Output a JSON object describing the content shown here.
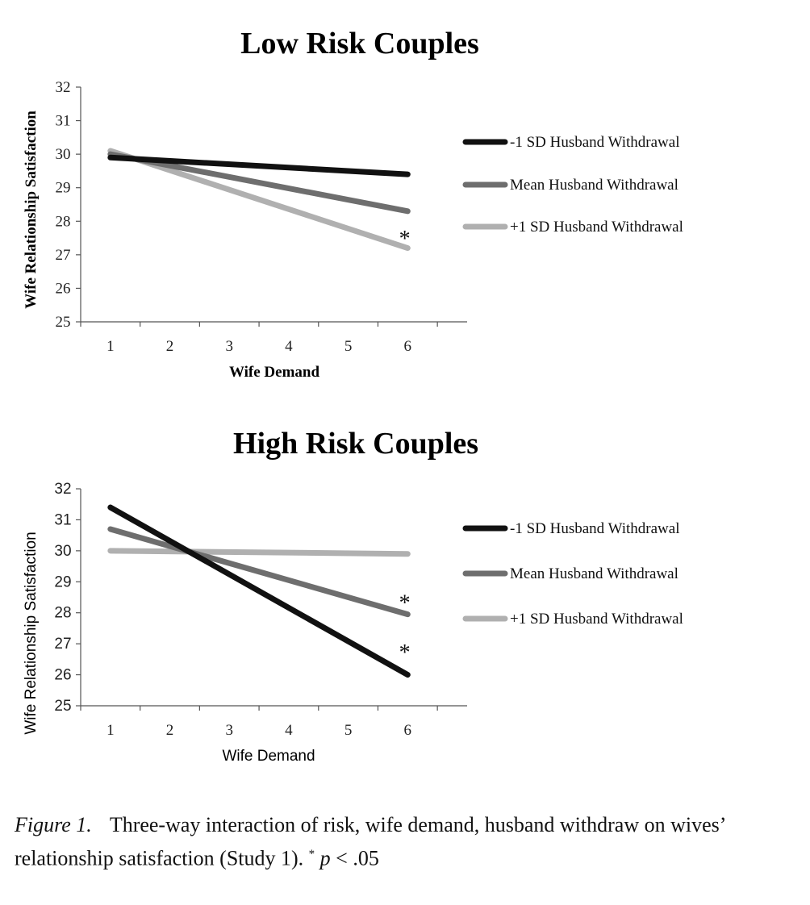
{
  "chart_data": [
    {
      "type": "line",
      "title": "Low Risk Couples",
      "xlabel": "Wife Demand",
      "ylabel": "Wife Relationship Satisfaction",
      "x": [
        1,
        6
      ],
      "xticks": [
        "1",
        "2",
        "3",
        "4",
        "5",
        "6"
      ],
      "yticks": [
        "25",
        "26",
        "27",
        "28",
        "29",
        "30",
        "31",
        "32"
      ],
      "xlim": [
        0.5,
        7.0
      ],
      "ylim": [
        25,
        32
      ],
      "grid": false,
      "legend_position": "right",
      "series": [
        {
          "name": "-1 SD Husband Withdrawal",
          "values": [
            29.9,
            29.4
          ],
          "color": "#111111"
        },
        {
          "name": "Mean Husband Withdrawal",
          "values": [
            30.0,
            28.3
          ],
          "color": "#6e6e6e"
        },
        {
          "name": "+1 SD Husband Withdrawal",
          "values": [
            30.1,
            27.2
          ],
          "color": "#b0b0b0"
        }
      ],
      "annotations": [
        {
          "text": "*",
          "x": 5.95,
          "y": 27.5
        }
      ]
    },
    {
      "type": "line",
      "title": "High Risk Couples",
      "xlabel": "Wife Demand",
      "ylabel": "Wife Relationship Satisfaction",
      "x": [
        1,
        6
      ],
      "xticks": [
        "1",
        "2",
        "3",
        "4",
        "5",
        "6"
      ],
      "yticks": [
        "25",
        "26",
        "27",
        "28",
        "29",
        "30",
        "31",
        "32"
      ],
      "xlim": [
        0.5,
        7.0
      ],
      "ylim": [
        25,
        32
      ],
      "grid": false,
      "legend_position": "right",
      "series": [
        {
          "name": "-1 SD Husband Withdrawal",
          "values": [
            31.4,
            26.0
          ],
          "color": "#111111"
        },
        {
          "name": "Mean Husband Withdrawal",
          "values": [
            30.7,
            27.95
          ],
          "color": "#6e6e6e"
        },
        {
          "name": "+1 SD Husband Withdrawal",
          "values": [
            30.0,
            29.9
          ],
          "color": "#b0b0b0"
        }
      ],
      "annotations": [
        {
          "text": "*",
          "x": 5.95,
          "y": 28.35
        },
        {
          "text": "*",
          "x": 5.95,
          "y": 26.75
        }
      ]
    }
  ],
  "caption": {
    "label": "Figure 1.",
    "text": "Three-way interaction of risk, wife demand, husband withdraw on wives’ relationship satisfaction (Study 1).",
    "sig_marker": "*",
    "p_symbol": "p",
    "p_rest": "< .05"
  }
}
